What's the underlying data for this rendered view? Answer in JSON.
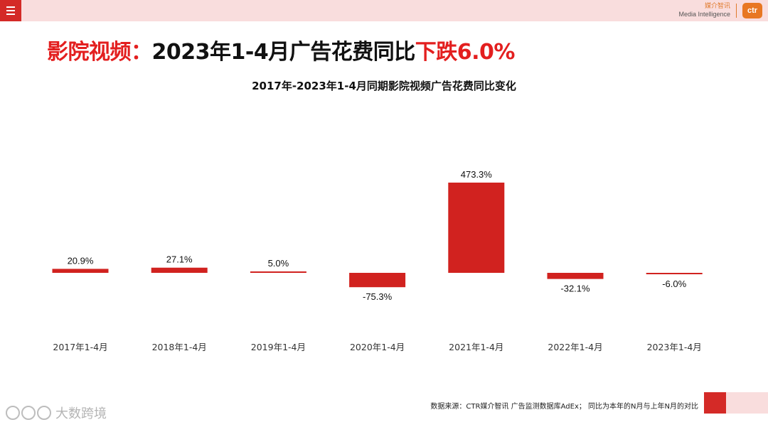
{
  "header": {
    "brand_cn": "媒介智讯",
    "brand_en": "Media Intelligence",
    "logo_text": "ctr"
  },
  "title": {
    "part1": "影院视频：",
    "part2": "2023年1-4月广告花费同比",
    "part3": "下跌6.0%"
  },
  "chart_data": {
    "type": "bar",
    "title": "2017年-2023年1-4月同期影院视频广告花费同比变化",
    "categories": [
      "2017年1-4月",
      "2018年1-4月",
      "2019年1-4月",
      "2020年1-4月",
      "2021年1-4月",
      "2022年1-4月",
      "2023年1-4月"
    ],
    "values": [
      20.9,
      27.1,
      5.0,
      -75.3,
      473.3,
      -32.1,
      -6.0
    ],
    "labels": [
      "20.9%",
      "27.1%",
      "5.0%",
      "-75.3%",
      "473.3%",
      "-32.1%",
      "-6.0%"
    ],
    "bar_color": "#d1221f",
    "unit": "%",
    "xlabel": "",
    "ylabel": ""
  },
  "footer": {
    "source": "数据来源：CTR媒介智讯 广告监测数据库AdEx；  同比为本年的N月与上年N月的对比"
  },
  "watermark": {
    "text": "大数跨境"
  }
}
